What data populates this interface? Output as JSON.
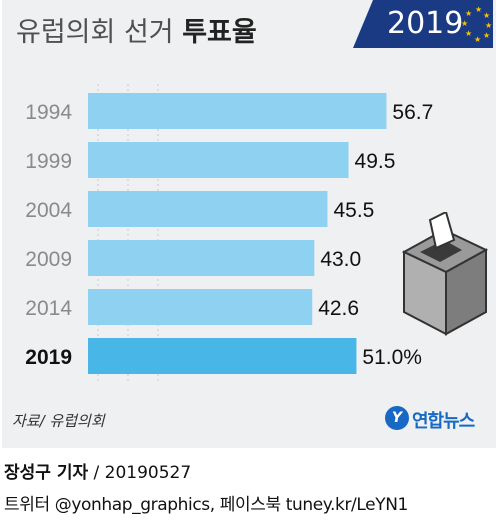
{
  "header": {
    "title_regular": "유럽의회 선거 ",
    "title_bold": "투표율",
    "year_badge": "2019"
  },
  "chart_data": {
    "type": "bar",
    "orientation": "horizontal",
    "categories": [
      "1994",
      "1999",
      "2004",
      "2009",
      "2014",
      "2019"
    ],
    "values": [
      56.7,
      49.5,
      45.5,
      43.0,
      42.6,
      51.0
    ],
    "value_labels": [
      "56.7",
      "49.5",
      "45.5",
      "43.0",
      "42.6",
      "51.0%"
    ],
    "highlight_category": "2019",
    "colors": {
      "bar": "#8fd1f1",
      "highlight": "#48b7e8",
      "background": "#eff0f1",
      "badge": "#1b3a84",
      "star": "#f6c400"
    },
    "xlim": [
      0,
      57
    ],
    "grid": true
  },
  "footer": {
    "source": "자료/ 유럽의회",
    "logo_icon": "Y",
    "logo_text": "연합뉴스",
    "reporter": "장성구 기자",
    "date_sep": "/ 20190527",
    "social": "트위터 @yonhap_graphics, 페이스북 tuney.kr/LeYN1"
  },
  "icons": [
    "ballot-box-icon",
    "eu-stars-icon",
    "yonhap-logo-icon"
  ]
}
